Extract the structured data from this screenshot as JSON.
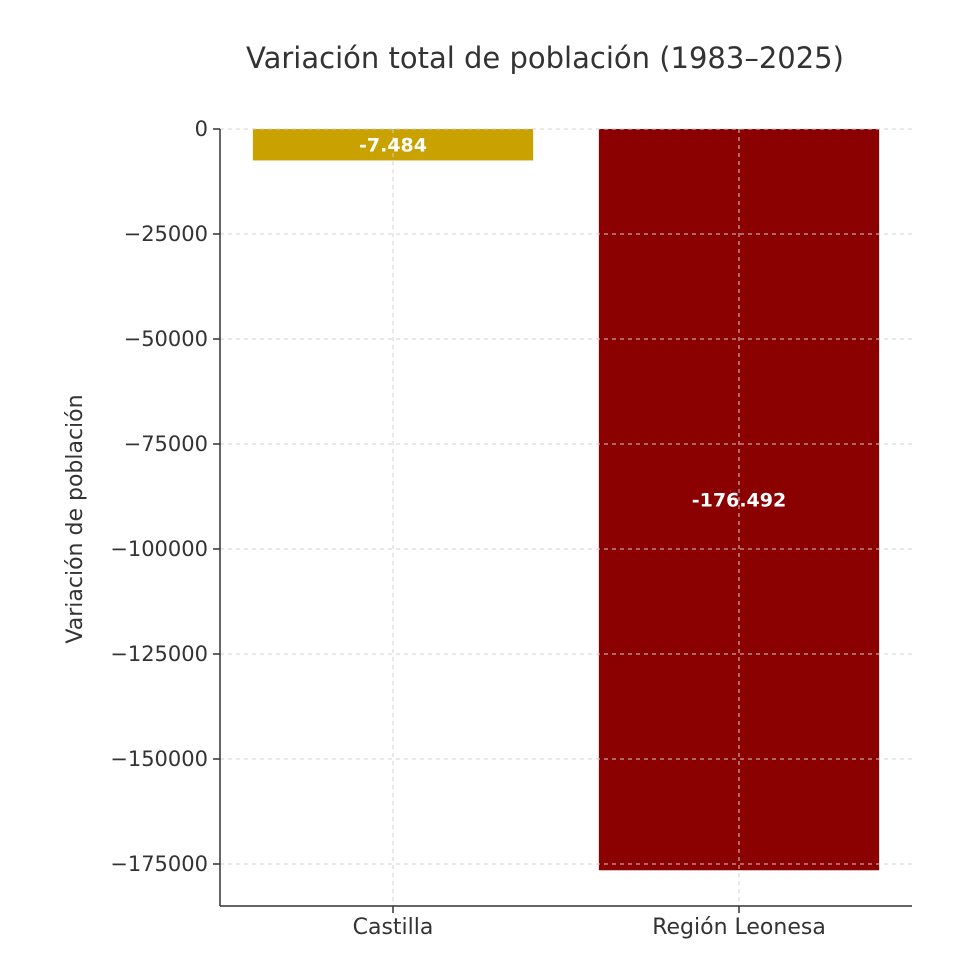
{
  "chart_data": {
    "type": "bar",
    "title": "Variación total de población (1983–2025)",
    "xlabel": "",
    "ylabel": "Variación de población",
    "categories": [
      "Castilla",
      "Región Leonesa"
    ],
    "values": [
      -7484,
      -176492
    ],
    "data_labels": [
      "-7.484",
      "-176.492"
    ],
    "colors": [
      "#C9A200",
      "#8B0000"
    ],
    "ylim": [
      -185000,
      0
    ],
    "yticks": [
      0,
      -25000,
      -50000,
      -75000,
      -100000,
      -125000,
      -150000,
      -175000
    ],
    "ytick_labels": [
      "0",
      "−25000",
      "−50000",
      "−75000",
      "−100000",
      "−125000",
      "−150000",
      "−175000"
    ],
    "grid": true
  }
}
